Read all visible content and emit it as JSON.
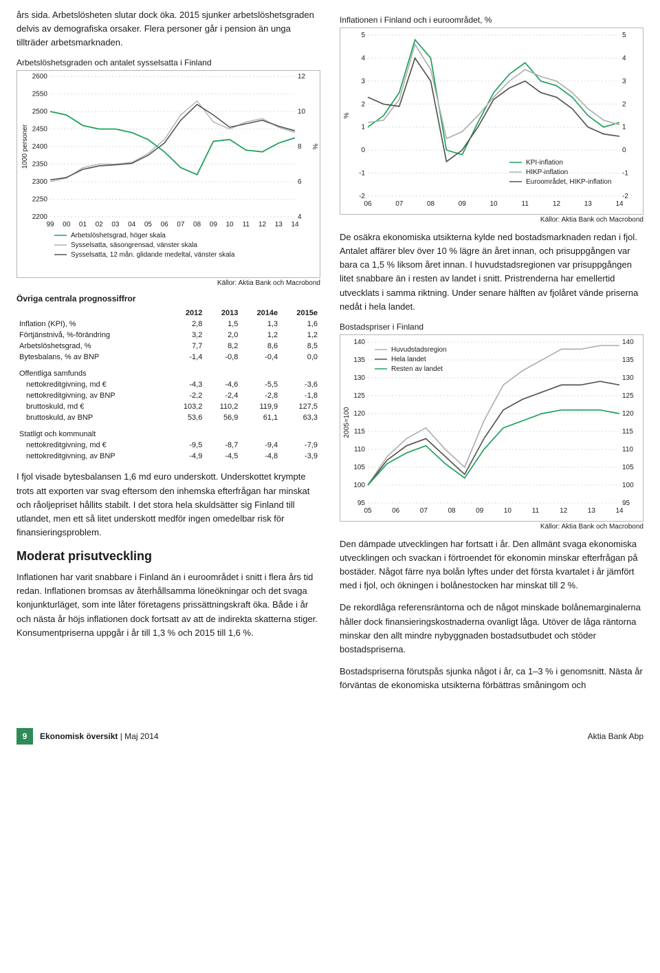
{
  "left": {
    "intro_para": "års sida. Arbetslösheten slutar dock öka. 2015 sjunker arbetslöshetsgraden delvis av demografiska orsaker. Flera personer går i pension än unga tillträder arbetsmarknaden.",
    "chart1": {
      "title": "Arbetslöshetsgraden och antalet sysselsatta i Finland",
      "left_axis": {
        "min": 2200,
        "max": 2600,
        "step": 50,
        "label": "1000 personer"
      },
      "right_axis": {
        "min": 4,
        "max": 12,
        "step": 2,
        "label": "%"
      },
      "x_labels": [
        "99",
        "00",
        "01",
        "02",
        "03",
        "04",
        "05",
        "06",
        "07",
        "08",
        "09",
        "10",
        "11",
        "12",
        "13",
        "14"
      ],
      "colors": {
        "arbetsloshet": "#1fa05a",
        "syssel_season": "#b0b0b0",
        "syssel_12m": "#555555",
        "grid": "#d9d9d9",
        "border": "#b5b5b5"
      },
      "legend": [
        "Arbetslöshetsgrad, höger skala",
        "Sysselsatta, säsongrensad, vänster skala",
        "Sysselsatta, 12 mån. glidande medeltal, vänster skala"
      ],
      "series": {
        "arbetsloshet": [
          10.0,
          9.8,
          9.2,
          9.0,
          9.0,
          8.8,
          8.4,
          7.7,
          6.8,
          6.4,
          8.3,
          8.4,
          7.8,
          7.7,
          8.2,
          8.5
        ],
        "syssel_season": [
          2300,
          2310,
          2340,
          2350,
          2350,
          2355,
          2380,
          2420,
          2490,
          2530,
          2470,
          2450,
          2470,
          2480,
          2455,
          2440
        ],
        "syssel_12m": [
          2305,
          2312,
          2335,
          2345,
          2348,
          2352,
          2375,
          2410,
          2475,
          2520,
          2490,
          2455,
          2465,
          2475,
          2458,
          2445
        ]
      },
      "source": "Källor: Aktia Bank och Macrobond"
    },
    "table": {
      "title": "Övriga centrala prognossiffror",
      "columns": [
        "",
        "2012",
        "2013",
        "2014e",
        "2015e"
      ],
      "sections": [
        {
          "rows": [
            [
              "Inflation (KPI), %",
              "2,8",
              "1,5",
              "1,3",
              "1,6"
            ],
            [
              "Förtjänstnivå, %-förändring",
              "3,2",
              "2,0",
              "1,2",
              "1,2"
            ],
            [
              "Arbetslöshetsgrad, %",
              "7,7",
              "8,2",
              "8,6",
              "8,5"
            ],
            [
              "Bytesbalans, % av BNP",
              "-1,4",
              "-0,8",
              "-0,4",
              "0,0"
            ]
          ]
        },
        {
          "header": "Offentliga samfunds",
          "rows": [
            [
              "nettokreditgivning, md €",
              "-4,3",
              "-4,6",
              "-5,5",
              "-3,6"
            ],
            [
              "nettokreditgivning, av BNP",
              "-2,2",
              "-2,4",
              "-2,8",
              "-1,8"
            ],
            [
              "bruttoskuld, md €",
              "103,2",
              "110,2",
              "119,9",
              "127,5"
            ],
            [
              "bruttoskuld, av BNP",
              "53,6",
              "56,9",
              "61,1",
              "63,3"
            ]
          ]
        },
        {
          "header": "Statligt och kommunalt",
          "rows": [
            [
              "nettokreditgivning, md €",
              "-9,5",
              "-8,7",
              "-9,4",
              "-7,9"
            ],
            [
              "nettokreditgivning, av BNP",
              "-4,9",
              "-4,5",
              "-4,8",
              "-3,9"
            ]
          ]
        }
      ]
    },
    "para2": "I fjol visade bytesbalansen 1,6 md euro underskott. Underskottet krympte trots att exporten var svag eftersom den inhemska efterfrågan har minskat och råoljepriset hållits stabilt. I det stora hela skuldsätter sig Finland till utlandet, men ett så litet underskott medför ingen omedelbar risk för finansieringsproblem.",
    "heading1": "Moderat prisutveckling",
    "para3": "Inflationen har varit snabbare i Finland än i euroområdet i snitt i flera års tid redan. Inflationen bromsas av återhållsamma löneökningar och det svaga konjunkturläget, som inte låter företagens prissättningskraft öka. Både i år och nästa år höjs inflationen dock fortsatt av att de indirekta skatterna stiger. Konsumentpriserna uppgår i år till 1,3 % och 2015 till 1,6 %."
  },
  "right": {
    "chart2": {
      "title": "Inflationen i Finland och i euroområdet, %",
      "y_axis": {
        "min": -2,
        "max": 5,
        "step": 1,
        "label": "%"
      },
      "x_labels": [
        "06",
        "07",
        "08",
        "09",
        "10",
        "11",
        "12",
        "13",
        "14"
      ],
      "colors": {
        "kpi": "#1fa05a",
        "hikp": "#b0b0b0",
        "euro": "#555555",
        "grid": "#d9d9d9"
      },
      "legend": [
        "KPI-inflation",
        "HIKP-inflation",
        "Euroområdet, HIKP-inflation"
      ],
      "series": {
        "kpi": [
          1.0,
          1.5,
          2.5,
          4.8,
          4.0,
          0.0,
          -0.2,
          1.2,
          2.5,
          3.3,
          3.8,
          3.0,
          2.8,
          2.3,
          1.5,
          1.0,
          1.2
        ],
        "hikp": [
          1.2,
          1.3,
          2.2,
          4.6,
          3.5,
          0.5,
          0.8,
          1.5,
          2.3,
          3.0,
          3.5,
          3.2,
          3.0,
          2.5,
          1.8,
          1.3,
          1.1
        ],
        "euro": [
          2.3,
          2.0,
          1.9,
          4.0,
          3.0,
          -0.5,
          0.0,
          1.0,
          2.2,
          2.7,
          3.0,
          2.5,
          2.3,
          1.8,
          1.0,
          0.7,
          0.6
        ]
      },
      "source": "Källor: Aktia Bank och Macrobond"
    },
    "para1": "De osäkra ekonomiska utsikterna kylde ned bostadsmarknaden redan i fjol. Antalet affärer blev över 10 % lägre än året innan, och prisuppgången var bara ca 1,5 % liksom året innan. I huvudstadsregionen var prisuppgången litet snabbare än i resten av landet i snitt. Pristrenderna har emellertid utvecklats i samma riktning. Under senare hälften av fjolåret vände priserna nedåt i hela landet.",
    "chart3": {
      "title": "Bostadspriser i Finland",
      "y_axis": {
        "min": 95,
        "max": 140,
        "step": 5,
        "label": "2005=100"
      },
      "x_labels": [
        "05",
        "06",
        "07",
        "08",
        "09",
        "10",
        "11",
        "12",
        "13",
        "14"
      ],
      "colors": {
        "hsr": "#b0b0b0",
        "hela": "#555555",
        "rest": "#1fa05a",
        "grid": "#d9d9d9"
      },
      "legend": [
        "Huvudstadsregion",
        "Hela landet",
        "Resten av landet"
      ],
      "series": {
        "hsr": [
          100,
          108,
          113,
          116,
          110,
          105,
          118,
          128,
          132,
          135,
          138,
          138,
          139,
          139
        ],
        "hela": [
          100,
          107,
          111,
          113,
          108,
          103,
          113,
          121,
          124,
          126,
          128,
          128,
          129,
          128
        ],
        "rest": [
          100,
          106,
          109,
          111,
          106,
          102,
          110,
          116,
          118,
          120,
          121,
          121,
          121,
          120
        ]
      },
      "source": "Källor: Aktia Bank och Macrobond"
    },
    "para2": "Den dämpade utvecklingen har fortsatt i år. Den allmänt svaga ekonomiska utvecklingen och svackan i förtroendet för ekonomin minskar efterfrågan på bostäder. Något färre nya bolån lyftes under det första kvartalet i år jämfört med i fjol, och ökningen i bolånestocken har minskat till 2 %.",
    "para3": "De rekordlåga referensräntorna och de något minskade bolånemarginalerna håller dock finansieringskostnaderna ovanligt låga. Utöver de låga räntorna minskar den allt mindre nybyggnaden bostadsutbudet och stöder bostadspriserna.",
    "para4": "Bostadspriserna förutspås sjunka något i år, ca 1–3 % i genomsnitt. Nästa år förväntas de ekonomiska utsikterna förbättras småningom och"
  },
  "footer": {
    "page": "9",
    "title_bold": "Ekonomisk översikt",
    "title_light": " | Maj 2014",
    "right": "Aktia Bank Abp"
  }
}
